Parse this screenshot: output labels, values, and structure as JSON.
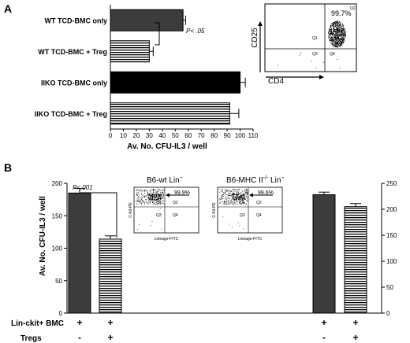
{
  "chart_data": [
    {
      "type": "bar",
      "panel_label": "A",
      "orientation": "horizontal",
      "categories": [
        "WT TCD-BMC only",
        "WT TCD-BMC + Treg",
        "IIKO TCD-BMC only",
        "IIKO TCD-BMC + Treg"
      ],
      "values": [
        56,
        30,
        100,
        92
      ],
      "errors": [
        2,
        3,
        4,
        7
      ],
      "fills": [
        "dark-gray",
        "horizontal-stripes",
        "black",
        "horizontal-stripes"
      ],
      "xlabel": "Av. No. CFU-IL3 / well",
      "xlim": [
        0,
        110
      ],
      "xticks": [
        "0",
        "10",
        "20",
        "30",
        "40",
        "50",
        "60",
        "70",
        "80",
        "90",
        "100",
        "110"
      ],
      "annotation": "P< .05",
      "inset": {
        "type": "scatter",
        "xlabel": "CD4",
        "ylabel": "CD25",
        "percent": "99.7%",
        "quadrants": [
          "Q1",
          "Q2",
          "Q3",
          "Q4"
        ]
      }
    },
    {
      "type": "bar",
      "panel_label": "B",
      "ylabel": "Av. No. CFU-IL3 / well",
      "ylim_left": [
        0,
        200
      ],
      "yticks_left": [
        "0",
        "50",
        "100",
        "150",
        "200"
      ],
      "ylim_right": [
        0,
        250
      ],
      "yticks_right": [
        "0",
        "50",
        "100",
        "150",
        "200",
        "250"
      ],
      "series": [
        {
          "values": [
            185,
            114
          ],
          "errors": [
            7,
            5
          ],
          "fills": [
            "dark-gray",
            "horizontal-stripes"
          ],
          "axis": "left"
        },
        {
          "values": [
            228,
            205
          ],
          "errors": [
            5,
            6
          ],
          "fills": [
            "dark-gray",
            "horizontal-stripes"
          ],
          "axis": "right"
        }
      ],
      "annotation": "P<.001",
      "row_labels": [
        {
          "label": "Lin-ckit+ BMC",
          "marks": [
            "+",
            "+",
            "+",
            "+"
          ]
        },
        {
          "label": "Tregs",
          "marks": [
            "-",
            "+",
            "-",
            "+"
          ]
        }
      ],
      "insets": [
        {
          "title": "B6-wt Lin",
          "title_sup": "−",
          "xlabel": "Lineage-FITC",
          "ylabel": "C-Kit-PE",
          "percent": "99.9%",
          "quadrants": [
            "Q1",
            "Q2",
            "Q3",
            "Q4"
          ]
        },
        {
          "title": "B6-MHC II",
          "title_sup": "-/-",
          "title_suffix": " Lin",
          "title_suffix_sup": "−",
          "xlabel": "Lineage-FITC",
          "ylabel": "C-Kit-PE",
          "percent": "99.6%",
          "quadrants": [
            "Q1",
            "Q2",
            "Q3",
            "Q4"
          ]
        }
      ]
    }
  ],
  "colors": {
    "dark_bar": "#3c3c3c",
    "black_bar": "#000000",
    "stripe": "#000000",
    "axis": "#000000"
  }
}
